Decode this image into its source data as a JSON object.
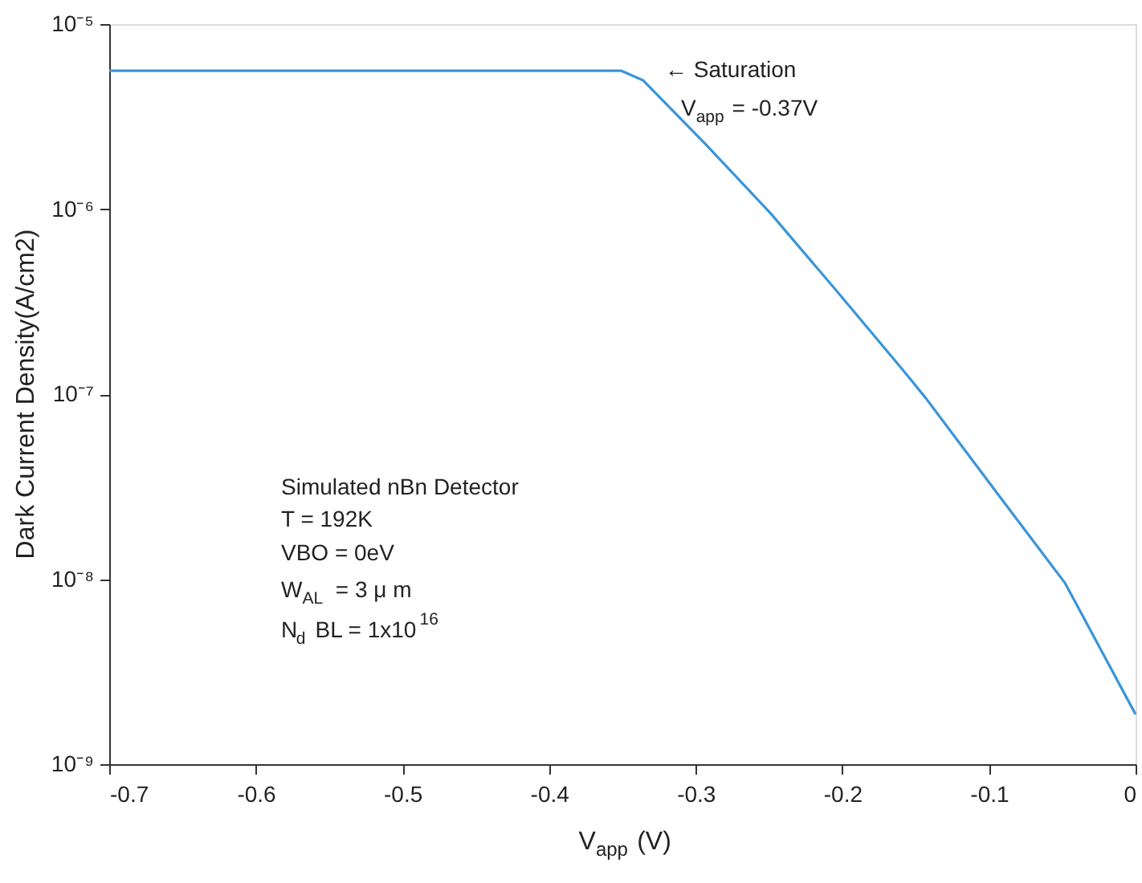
{
  "chart_data": {
    "type": "line",
    "xlabel": "V$_{app}$ (V)",
    "ylabel": "Dark Current Density(A/cm2)",
    "x": [
      -0.7,
      -0.5,
      -0.351,
      -0.336,
      -0.293,
      -0.249,
      -0.205,
      -0.159,
      -0.143,
      -0.092,
      -0.048,
      0
    ],
    "series": [
      {
        "color": "#3a95d8",
        "values": [
          5.6e-06,
          5.6e-06,
          5.6e-06,
          4.97e-06,
          2.23e-06,
          9.5e-07,
          3.7e-07,
          1.36e-07,
          9.5e-08,
          2.75e-08,
          9.5e-09,
          1.86e-09
        ]
      }
    ],
    "log": true,
    "xlim": [
      -0.7,
      0
    ],
    "xticks": [
      -0.7,
      -0.6,
      -0.5,
      -0.4,
      -0.3,
      -0.2,
      -0.1,
      0
    ],
    "ylim": [
      1e-09,
      1e-05
    ],
    "yticks": [
      {
        "value": 1e-09,
        "label": "10⁻⁹"
      },
      {
        "value": 1e-08,
        "label": "10⁻⁸"
      },
      {
        "value": 1e-07,
        "label": "10⁻⁷"
      },
      {
        "value": 1e-06,
        "label": "10⁻⁶"
      },
      {
        "value": 1e-05,
        "label": "10⁻⁵"
      }
    ],
    "grid": false,
    "marker": "none",
    "line_style": "solid",
    "annotations": [
      "← Saturation",
      "V$_{app}$ = -0.37V",
      "Simulated nBn Detector",
      "T = 192K",
      "VBO = 0eV",
      "W$_{AL}$ = 3 μ m",
      "N$_{d}$ BL = 1x10$^{16}$"
    ]
  }
}
